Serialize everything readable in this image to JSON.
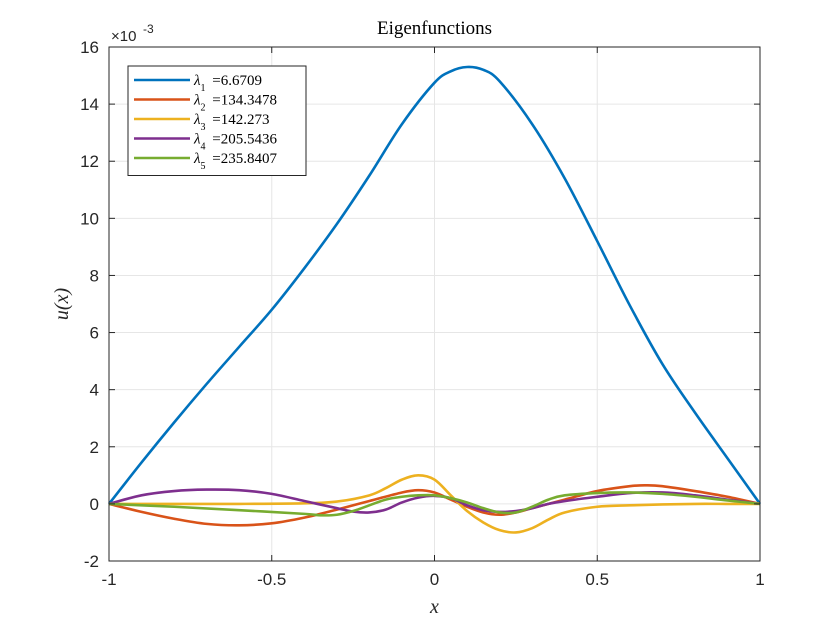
{
  "chart_data": {
    "type": "line",
    "title": "Eigenfunctions",
    "xlabel": "x",
    "ylabel": "u(x)",
    "y_exponent_label": "×10",
    "y_exponent_power": "-3",
    "y_scale": 0.001,
    "xlim": [
      -1,
      1
    ],
    "ylim": [
      -2,
      16
    ],
    "xticks": [
      -1,
      -0.5,
      0,
      0.5,
      1
    ],
    "xtick_labels": [
      "-1",
      "-0.5",
      "0",
      "0.5",
      "1"
    ],
    "yticks": [
      -2,
      0,
      2,
      4,
      6,
      8,
      10,
      12,
      14,
      16
    ],
    "ytick_labels": [
      "-2",
      "0",
      "2",
      "4",
      "6",
      "8",
      "10",
      "12",
      "14",
      "16"
    ],
    "grid": true,
    "legend_location": "top-left",
    "series": [
      {
        "name": "λ1 =6.6709",
        "label_prefix": "λ",
        "label_sub": "1",
        "label_value": "=6.6709",
        "color": "#0072BD",
        "x": [
          -1,
          -0.9,
          -0.8,
          -0.7,
          -0.6,
          -0.5,
          -0.4,
          -0.3,
          -0.2,
          -0.1,
          0,
          0.05,
          0.1,
          0.15,
          0.2,
          0.3,
          0.4,
          0.5,
          0.6,
          0.7,
          0.8,
          0.9,
          1
        ],
        "y": [
          0,
          1.45,
          2.85,
          4.2,
          5.5,
          6.8,
          8.25,
          9.8,
          11.5,
          13.3,
          14.75,
          15.15,
          15.3,
          15.2,
          14.8,
          13.3,
          11.4,
          9.2,
          6.95,
          4.9,
          3.2,
          1.6,
          0
        ]
      },
      {
        "name": "λ2 =134.3478",
        "label_prefix": "λ",
        "label_sub": "2",
        "label_value": "=134.3478",
        "color": "#D95319",
        "x": [
          -1,
          -0.9,
          -0.8,
          -0.7,
          -0.6,
          -0.5,
          -0.4,
          -0.3,
          -0.2,
          -0.1,
          -0.05,
          0,
          0.05,
          0.1,
          0.15,
          0.2,
          0.25,
          0.3,
          0.4,
          0.5,
          0.6,
          0.65,
          0.7,
          0.8,
          0.9,
          1
        ],
        "y": [
          0,
          -0.28,
          -0.52,
          -0.7,
          -0.75,
          -0.68,
          -0.48,
          -0.2,
          0.1,
          0.4,
          0.48,
          0.4,
          0.15,
          -0.1,
          -0.3,
          -0.38,
          -0.3,
          -0.15,
          0.15,
          0.45,
          0.62,
          0.65,
          0.62,
          0.45,
          0.25,
          0
        ]
      },
      {
        "name": "λ3 =142.273",
        "label_prefix": "λ",
        "label_sub": "3",
        "label_value": "=142.273",
        "color": "#EDB120",
        "x": [
          -1,
          -0.8,
          -0.6,
          -0.4,
          -0.3,
          -0.2,
          -0.15,
          -0.1,
          -0.05,
          0,
          0.05,
          0.1,
          0.15,
          0.2,
          0.25,
          0.3,
          0.35,
          0.4,
          0.5,
          0.6,
          0.7,
          0.8,
          0.9,
          1
        ],
        "y": [
          0,
          0,
          0,
          0.02,
          0.08,
          0.3,
          0.55,
          0.85,
          1.0,
          0.85,
          0.3,
          -0.25,
          -0.65,
          -0.92,
          -1.0,
          -0.85,
          -0.55,
          -0.3,
          -0.1,
          -0.05,
          -0.02,
          0,
          0,
          0
        ]
      },
      {
        "name": "λ4 =205.5436",
        "label_prefix": "λ",
        "label_sub": "4",
        "label_value": "=205.5436",
        "color": "#7E2F8E",
        "x": [
          -1,
          -0.9,
          -0.8,
          -0.7,
          -0.6,
          -0.5,
          -0.4,
          -0.3,
          -0.25,
          -0.2,
          -0.15,
          -0.1,
          -0.05,
          0,
          0.05,
          0.1,
          0.15,
          0.2,
          0.25,
          0.3,
          0.35,
          0.4,
          0.5,
          0.6,
          0.7,
          0.8,
          0.9,
          1
        ],
        "y": [
          0,
          0.3,
          0.45,
          0.5,
          0.48,
          0.35,
          0.1,
          -0.15,
          -0.27,
          -0.3,
          -0.2,
          0.05,
          0.22,
          0.28,
          0.2,
          -0.05,
          -0.22,
          -0.28,
          -0.25,
          -0.15,
          0,
          0.1,
          0.25,
          0.38,
          0.4,
          0.3,
          0.15,
          0
        ]
      },
      {
        "name": "λ5 =235.8407",
        "label_prefix": "λ",
        "label_sub": "5",
        "label_value": "=235.8407",
        "color": "#77AC30",
        "x": [
          -1,
          -0.8,
          -0.6,
          -0.4,
          -0.35,
          -0.3,
          -0.25,
          -0.2,
          -0.15,
          -0.1,
          -0.05,
          0,
          0.05,
          0.1,
          0.15,
          0.2,
          0.25,
          0.3,
          0.35,
          0.4,
          0.5,
          0.6,
          0.7,
          0.8,
          0.9,
          1
        ],
        "y": [
          0,
          -0.1,
          -0.22,
          -0.35,
          -0.4,
          -0.38,
          -0.25,
          -0.05,
          0.15,
          0.25,
          0.3,
          0.3,
          0.2,
          0.05,
          -0.15,
          -0.3,
          -0.3,
          -0.1,
          0.15,
          0.3,
          0.38,
          0.4,
          0.35,
          0.25,
          0.12,
          0
        ]
      }
    ]
  }
}
